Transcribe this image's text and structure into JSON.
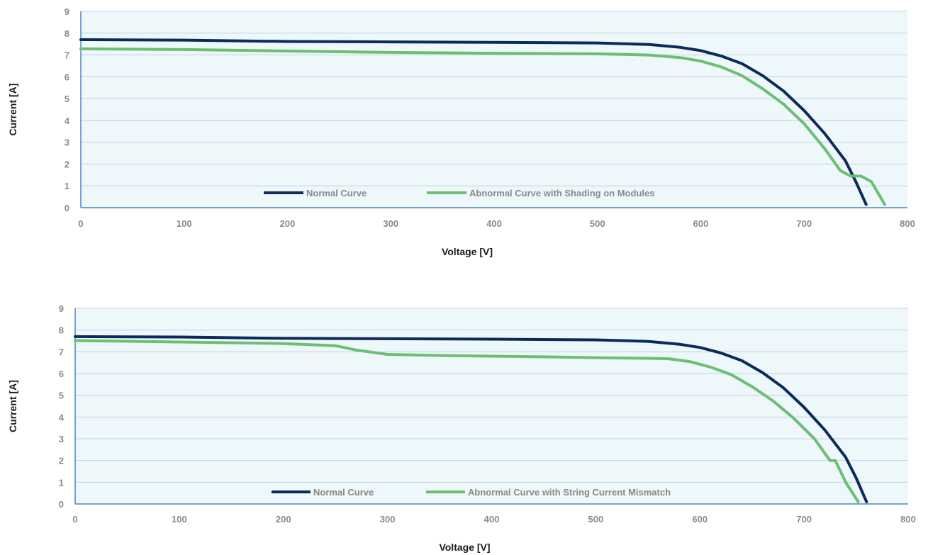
{
  "chart_data": [
    {
      "type": "line",
      "title": "",
      "xlabel": "Voltage [V]",
      "ylabel": "Current [A]",
      "xlim": [
        0,
        800
      ],
      "ylim": [
        0,
        9
      ],
      "xticks": [
        0,
        100,
        200,
        300,
        400,
        500,
        600,
        700,
        800
      ],
      "yticks": [
        0,
        1,
        2,
        3,
        4,
        5,
        6,
        7,
        8,
        9
      ],
      "grid": "horizontal",
      "legend_position": "bottom-center",
      "series": [
        {
          "name": "Normal Curve",
          "color": "#0d2a5c",
          "points": [
            [
              0,
              7.7
            ],
            [
              100,
              7.68
            ],
            [
              200,
              7.62
            ],
            [
              300,
              7.6
            ],
            [
              400,
              7.58
            ],
            [
              500,
              7.55
            ],
            [
              550,
              7.48
            ],
            [
              580,
              7.35
            ],
            [
              600,
              7.2
            ],
            [
              620,
              6.95
            ],
            [
              640,
              6.6
            ],
            [
              660,
              6.05
            ],
            [
              680,
              5.35
            ],
            [
              700,
              4.45
            ],
            [
              720,
              3.4
            ],
            [
              740,
              2.15
            ],
            [
              750,
              1.2
            ],
            [
              760,
              0.15
            ]
          ]
        },
        {
          "name": "Abnormal Curve with Shading on Modules",
          "color": "#6cbf72",
          "points": [
            [
              0,
              7.28
            ],
            [
              100,
              7.25
            ],
            [
              200,
              7.18
            ],
            [
              300,
              7.12
            ],
            [
              400,
              7.08
            ],
            [
              500,
              7.05
            ],
            [
              550,
              7.0
            ],
            [
              580,
              6.88
            ],
            [
              600,
              6.72
            ],
            [
              620,
              6.45
            ],
            [
              640,
              6.05
            ],
            [
              660,
              5.45
            ],
            [
              680,
              4.75
            ],
            [
              700,
              3.85
            ],
            [
              720,
              2.7
            ],
            [
              735,
              1.7
            ],
            [
              745,
              1.45
            ],
            [
              755,
              1.45
            ],
            [
              765,
              1.2
            ],
            [
              778,
              0.15
            ]
          ]
        }
      ]
    },
    {
      "type": "line",
      "title": "",
      "xlabel": "Voltage [V]",
      "ylabel": "Current [A]",
      "xlim": [
        0,
        800
      ],
      "ylim": [
        0,
        9
      ],
      "xticks": [
        0,
        100,
        200,
        300,
        400,
        500,
        600,
        700,
        800
      ],
      "yticks": [
        0,
        1,
        2,
        3,
        4,
        5,
        6,
        7,
        8,
        9
      ],
      "grid": "horizontal",
      "legend_position": "bottom-center",
      "series": [
        {
          "name": "Normal Curve",
          "color": "#0d2a5c",
          "points": [
            [
              0,
              7.7
            ],
            [
              100,
              7.68
            ],
            [
              200,
              7.62
            ],
            [
              300,
              7.6
            ],
            [
              400,
              7.58
            ],
            [
              500,
              7.55
            ],
            [
              550,
              7.48
            ],
            [
              580,
              7.35
            ],
            [
              600,
              7.2
            ],
            [
              620,
              6.95
            ],
            [
              640,
              6.6
            ],
            [
              660,
              6.05
            ],
            [
              680,
              5.35
            ],
            [
              700,
              4.45
            ],
            [
              720,
              3.4
            ],
            [
              740,
              2.15
            ],
            [
              750,
              1.2
            ],
            [
              760,
              0.1
            ]
          ]
        },
        {
          "name": "Abnormal Curve with String Current Mismatch",
          "color": "#6cbf72",
          "points": [
            [
              0,
              7.52
            ],
            [
              100,
              7.45
            ],
            [
              200,
              7.38
            ],
            [
              250,
              7.28
            ],
            [
              270,
              7.08
            ],
            [
              300,
              6.88
            ],
            [
              350,
              6.83
            ],
            [
              400,
              6.8
            ],
            [
              450,
              6.77
            ],
            [
              500,
              6.73
            ],
            [
              550,
              6.7
            ],
            [
              570,
              6.68
            ],
            [
              590,
              6.55
            ],
            [
              610,
              6.3
            ],
            [
              630,
              5.95
            ],
            [
              650,
              5.4
            ],
            [
              670,
              4.75
            ],
            [
              690,
              3.95
            ],
            [
              710,
              3.0
            ],
            [
              725,
              2.0
            ],
            [
              730,
              2.0
            ],
            [
              740,
              1.0
            ],
            [
              752,
              0.1
            ]
          ]
        }
      ]
    }
  ]
}
